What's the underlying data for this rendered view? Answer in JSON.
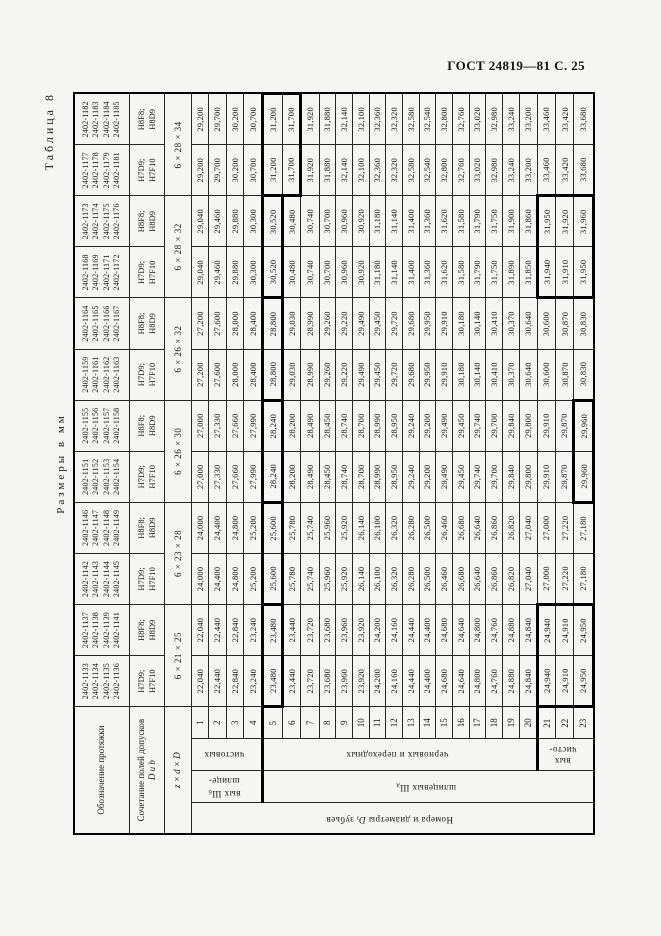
{
  "page_header": "ГОСТ 24819—81 С. 25",
  "table_caption": "Таблица 8",
  "units_label": "Размеры в мм",
  "corner_headers": {
    "designation": "Обозначение протяжки",
    "tolerance_line1": "Сочетание полей допусков",
    "tolerance_line2": "D и b",
    "spline_formula": "z × d × D"
  },
  "left_headers": {
    "teeth_title_prefix": "Номера и диаметры",
    "teeth_title_D": "D",
    "teeth_title_sub": "i",
    "teeth_title_suffix": "зубьев",
    "spline_b_line1": "шлице-",
    "spline_b_line2": "вых Ш",
    "spline_b_sub": "б",
    "spline_d_text": "шлицевых Ш",
    "spline_d_sub": "д",
    "finishing_top": "чистовых",
    "rough_transition": "черновых и переходных",
    "finishing_bottom_line1": "чисто-",
    "finishing_bottom_line2": "вых"
  },
  "row_numbers": [
    1,
    2,
    3,
    4,
    5,
    6,
    7,
    8,
    9,
    10,
    11,
    12,
    13,
    14,
    15,
    16,
    17,
    18,
    19,
    20,
    21,
    22,
    23
  ],
  "size_groups": [
    {
      "size": "6 × 21 × 25"
    },
    {
      "size": "6 × 23 × 28"
    },
    {
      "size": "6 × 26 × 30"
    },
    {
      "size": "6 × 26 × 32"
    },
    {
      "size": "6 × 28 × 32"
    },
    {
      "size": "6 × 28 × 34"
    }
  ],
  "columns": [
    {
      "designations": [
        "2402-1133",
        "2402-1134",
        "2402-1135",
        "2402-1136"
      ],
      "tolerance_line1": "H7D9;",
      "tolerance_line2": "H7F10",
      "values": [
        "22,040",
        "22,440",
        "22,840",
        "23,240",
        "23,480",
        "23,440",
        "23,720",
        "23,680",
        "23,960",
        "23,920",
        "24,200",
        "24,160",
        "24,440",
        "24,400",
        "24,680",
        "24,640",
        "24,800",
        "24,760",
        "24,880",
        "24,840",
        "24,940",
        "24,910",
        "24,950"
      ]
    },
    {
      "designations": [
        "2402-1137",
        "2402-1138",
        "2402-1139",
        "2402-1141"
      ],
      "tolerance_line1": "H8F8;",
      "tolerance_line2": "H8D9",
      "values": [
        "22,040",
        "22,440",
        "22,840",
        "23,240",
        "23,480",
        "23,440",
        "23,720",
        "23,680",
        "23,960",
        "23,920",
        "24,200",
        "24,160",
        "24,440",
        "24,400",
        "24,680",
        "24,640",
        "24,800",
        "24,760",
        "24,880",
        "24,840",
        "24,940",
        "24,910",
        "24,950"
      ]
    },
    {
      "designations": [
        "2402-1142",
        "2402-1143",
        "2402-1144",
        "2402-1145"
      ],
      "tolerance_line1": "H7D9;",
      "tolerance_line2": "H7F10",
      "values": [
        "24,000",
        "24,400",
        "24,800",
        "25,200",
        "25,600",
        "25,780",
        "25,740",
        "25,960",
        "25,920",
        "26,140",
        "26,100",
        "26,320",
        "26,280",
        "26,500",
        "26,460",
        "26,680",
        "26,640",
        "26,860",
        "26,820",
        "27,040",
        "27,000",
        "27,220",
        "27,180"
      ]
    },
    {
      "designations": [
        "2402-1146",
        "2402-1147",
        "2402-1148",
        "2402-1149"
      ],
      "tolerance_line1": "H8F8;",
      "tolerance_line2": "H8D9",
      "values": [
        "24,000",
        "24,400",
        "24,800",
        "25,200",
        "25,600",
        "25,780",
        "25,740",
        "25,960",
        "25,920",
        "26,140",
        "26,100",
        "26,320",
        "26,280",
        "26,500",
        "26,460",
        "26,680",
        "26,640",
        "26,860",
        "26,820",
        "27,040",
        "27,000",
        "27,220",
        "27,180"
      ]
    },
    {
      "designations": [
        "2402-1151",
        "2402-1152",
        "2402-1153",
        "2402-1154"
      ],
      "tolerance_line1": "H7D9;",
      "tolerance_line2": "H7F10",
      "values": [
        "27,000",
        "27,330",
        "27,660",
        "27,990",
        "28,240",
        "28,200",
        "28,490",
        "28,450",
        "28,740",
        "28,700",
        "28,990",
        "28,950",
        "29,240",
        "29,200",
        "29,490",
        "29,450",
        "29,740",
        "29,700",
        "29,840",
        "29,800",
        "29,910",
        "29,870",
        "29,960"
      ]
    },
    {
      "designations": [
        "2402-1155",
        "2402-1156",
        "2402-1157",
        "2402-1158"
      ],
      "tolerance_line1": "H8F8;",
      "tolerance_line2": "H8D9",
      "values": [
        "27,000",
        "27,330",
        "27,660",
        "27,990",
        "28,240",
        "28,200",
        "28,490",
        "28,450",
        "28,740",
        "28,700",
        "28,990",
        "28,950",
        "29,240",
        "29,200",
        "29,490",
        "29,450",
        "29,740",
        "29,700",
        "29,840",
        "29,800",
        "29,910",
        "29,870",
        "29,960"
      ]
    },
    {
      "designations": [
        "2402-1159",
        "2402-1161",
        "2402-1162",
        "2402-1163"
      ],
      "tolerance_line1": "H7D9;",
      "tolerance_line2": "H7F10",
      "values": [
        "27,200",
        "27,600",
        "28,000",
        "28,400",
        "28,800",
        "29,030",
        "28,990",
        "29,260",
        "29,220",
        "29,490",
        "29,450",
        "29,720",
        "29,680",
        "29,950",
        "29,910",
        "30,180",
        "30,140",
        "30,410",
        "30,370",
        "30,640",
        "30,600",
        "30,870",
        "30,830"
      ]
    },
    {
      "designations": [
        "2402-1164",
        "2402-1165",
        "2402-1166",
        "2402-1167"
      ],
      "tolerance_line1": "H8F8;",
      "tolerance_line2": "H8D9",
      "values": [
        "27,200",
        "27,600",
        "28,000",
        "28,400",
        "28,800",
        "29,030",
        "28,990",
        "29,260",
        "29,220",
        "29,490",
        "29,450",
        "29,720",
        "29,680",
        "29,950",
        "29,910",
        "30,180",
        "30,140",
        "30,410",
        "30,370",
        "30,640",
        "30,600",
        "30,870",
        "30,830"
      ]
    },
    {
      "designations": [
        "2402-1168",
        "2402-1169",
        "2402-1171",
        "2402-1172"
      ],
      "tolerance_line1": "H7D9;",
      "tolerance_line2": "H7F10",
      "values": [
        "29,040",
        "29,460",
        "29,880",
        "30,300",
        "30,520",
        "30,480",
        "30,740",
        "30,700",
        "30,960",
        "30,920",
        "31,180",
        "31,140",
        "31,400",
        "31,360",
        "31,620",
        "31,580",
        "31,790",
        "31,750",
        "31,890",
        "31,850",
        "31,940",
        "31,910",
        "31,950"
      ]
    },
    {
      "designations": [
        "2402-1173",
        "2402-1174",
        "2402-1175",
        "2402-1176"
      ],
      "tolerance_line1": "H8F8;",
      "tolerance_line2": "H8D9",
      "values": [
        "29,040",
        "29,460",
        "29,880",
        "30,300",
        "30,520",
        "30,480",
        "30,740",
        "30,700",
        "30,960",
        "30,920",
        "31,180",
        "31,140",
        "31,400",
        "31,360",
        "31,620",
        "31,580",
        "31,790",
        "31,750",
        "31,900",
        "31,860",
        "31,950",
        "31,920",
        "31,960"
      ]
    },
    {
      "designations": [
        "2402-1177",
        "2402-1178",
        "2402-1179",
        "2402-1181"
      ],
      "tolerance_line1": "H7D9;",
      "tolerance_line2": "H7F10",
      "values": [
        "29,200",
        "29,700",
        "30,200",
        "30,700",
        "31,200",
        "31,700",
        "31,920",
        "31,880",
        "32,140",
        "32,100",
        "32,360",
        "32,320",
        "32,580",
        "32,540",
        "32,800",
        "32,760",
        "33,020",
        "32,980",
        "33,240",
        "33,200",
        "33,460",
        "33,420",
        "33,680"
      ]
    },
    {
      "designations": [
        "2402-1182",
        "2402-1183",
        "2402-1184",
        "2402-1185"
      ],
      "tolerance_line1": "H8F8;",
      "tolerance_line2": "H8D9",
      "values": [
        "29,200",
        "29,700",
        "30,200",
        "30,700",
        "31,200",
        "31,700",
        "31,920",
        "31,880",
        "32,140",
        "32,100",
        "32,360",
        "32,320",
        "32,580",
        "32,540",
        "32,800",
        "32,760",
        "33,020",
        "32,980",
        "33,240",
        "33,200",
        "33,460",
        "33,420",
        "33,680"
      ]
    }
  ],
  "zone_boxes": [
    {
      "col_start": 1,
      "col_end": 2,
      "row_start": 5,
      "row_end": 5
    },
    {
      "col_start": 1,
      "col_end": 2,
      "row_start": 21,
      "row_end": 23
    },
    {
      "col_start": 3,
      "col_end": 4,
      "row_start": 5,
      "row_end": 5
    },
    {
      "col_start": 5,
      "col_end": 6,
      "row_start": 5,
      "row_end": 5
    },
    {
      "col_start": 5,
      "col_end": 6,
      "row_start": 23,
      "row_end": 23
    },
    {
      "col_start": 7,
      "col_end": 8,
      "row_start": 5,
      "row_end": 5
    },
    {
      "col_start": 9,
      "col_end": 10,
      "row_start": 5,
      "row_end": 5
    },
    {
      "col_start": 9,
      "col_end": 10,
      "row_start": 21,
      "row_end": 23
    },
    {
      "col_start": 11,
      "col_end": 12,
      "row_start": 5,
      "row_end": 6
    }
  ]
}
